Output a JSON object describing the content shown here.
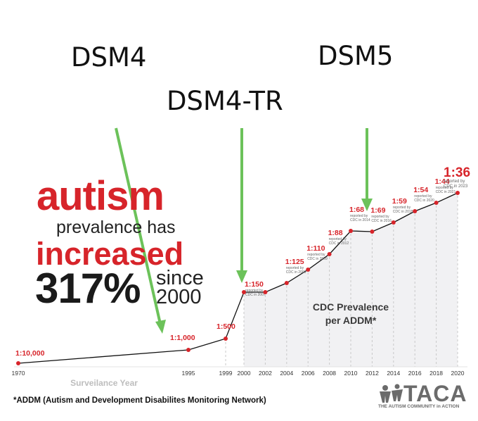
{
  "annotations": {
    "dsm4": "DSM4",
    "dsm4tr": "DSM4-TR",
    "dsm5": "DSM5",
    "arrow_color": "#6cc25a"
  },
  "headline": {
    "word1": "autism",
    "line2": "prevalence has",
    "word3": "increased",
    "percent": "317%",
    "since": "since",
    "year": "2000",
    "accent_color": "#d7242a"
  },
  "chart_data": {
    "type": "line",
    "title": "CDC Prevalence per ADDM*",
    "title_line1": "CDC Prevalence",
    "title_line2": "per ADDM*",
    "xlabel": "Surveilance Year",
    "ylabel": "",
    "x_ticks": [
      "1970",
      "1995",
      "1999",
      "2000",
      "2002",
      "2004",
      "2006",
      "2008",
      "2010",
      "2012",
      "2014",
      "2016",
      "2018",
      "2020"
    ],
    "points": [
      {
        "year": 1970,
        "ratio": "1:10,000",
        "rate_per_10000": 1
      },
      {
        "year": 1995,
        "ratio": "1:1,000",
        "rate_per_10000": 10
      },
      {
        "year": 1999,
        "ratio": "1:500",
        "rate_per_10000": 20
      },
      {
        "year": 2000,
        "ratio": "1:150",
        "rate_per_10000": 66.7,
        "note": "reported by CDC in 2007"
      },
      {
        "year": 2002,
        "ratio": "",
        "rate_per_10000": 66.7
      },
      {
        "year": 2004,
        "ratio": "1:125",
        "rate_per_10000": 80,
        "note": "reported by CDC in 2009"
      },
      {
        "year": 2006,
        "ratio": "1:110",
        "rate_per_10000": 90.9,
        "note": "reported by CDC in 2009"
      },
      {
        "year": 2008,
        "ratio": "1:88",
        "rate_per_10000": 113.6,
        "note": "reported by CDC in 2012"
      },
      {
        "year": 2010,
        "ratio": "1:68",
        "rate_per_10000": 147.1,
        "note": "reported by CDC in 2014"
      },
      {
        "year": 2012,
        "ratio": "1:69",
        "rate_per_10000": 144.9,
        "note": "reported by CDC in 2016"
      },
      {
        "year": 2014,
        "ratio": "1:59",
        "rate_per_10000": 169.5,
        "note": "reported by CDC in 2018"
      },
      {
        "year": 2016,
        "ratio": "1:54",
        "rate_per_10000": 185.2,
        "note": "reported by CDC in 2020"
      },
      {
        "year": 2018,
        "ratio": "1:44",
        "rate_per_10000": 227.3,
        "note": "reported by CDC in 2021"
      },
      {
        "year": 2020,
        "ratio": "1:36",
        "rate_per_10000": 277.8,
        "note": "reported by CDC in 2023"
      }
    ],
    "line_color": "#111111",
    "marker_color": "#d7242a",
    "shade_color": "#f1f1f3",
    "grid": "dashed vertical lines from 1999 onward"
  },
  "footer": {
    "footnote": "*ADDM (Autism and Development Disabilites Monitoring Network)",
    "logo": "TACA",
    "logo_tagline": "THE AUTISM COMMUNITY in ACTION"
  }
}
